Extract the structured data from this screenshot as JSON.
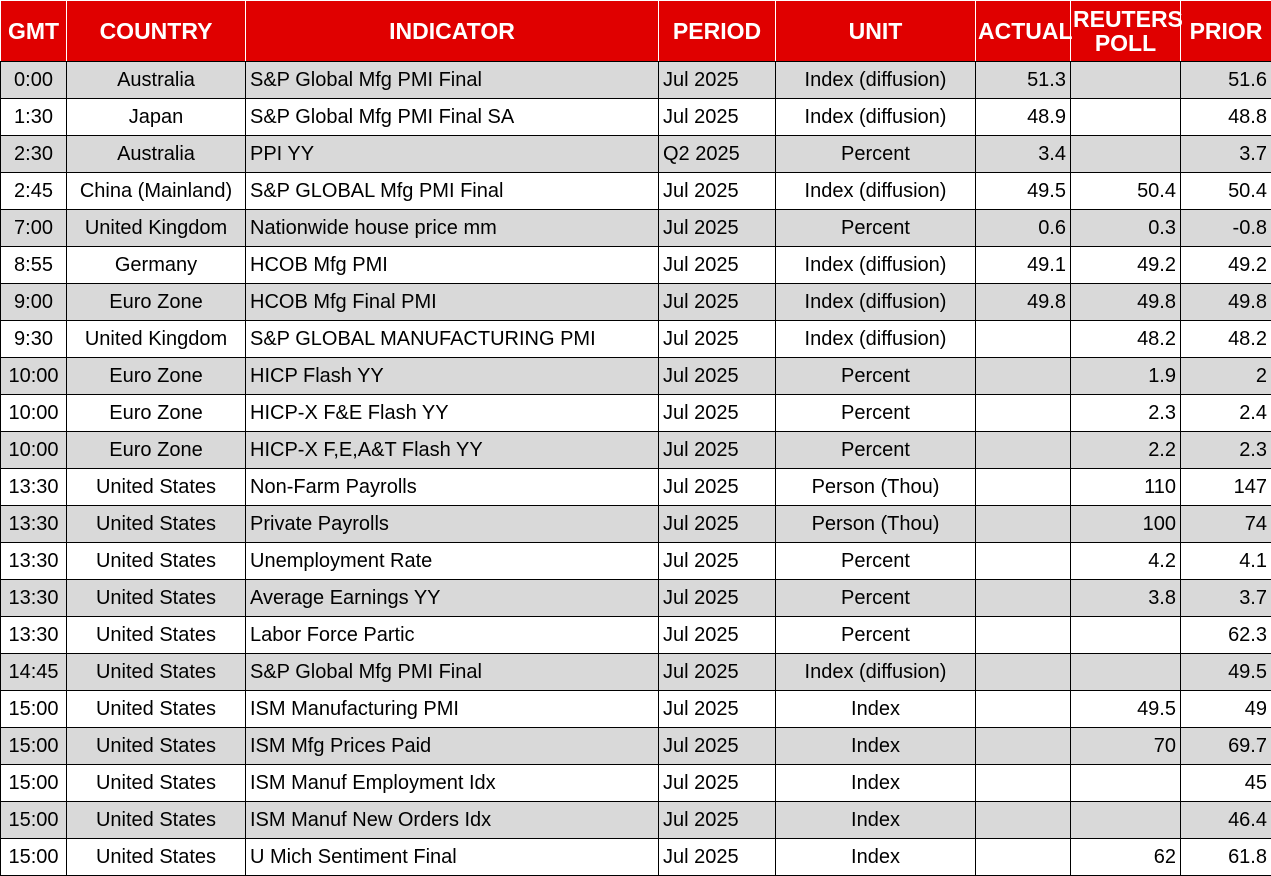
{
  "headers": {
    "gmt": "GMT",
    "country": "COUNTRY",
    "indicator": "INDICATOR",
    "period": "PERIOD",
    "unit": "UNIT",
    "actual": "ACTUAL",
    "poll_line1": "REUTERS",
    "poll_line2": "POLL",
    "prior": "PRIOR"
  },
  "rows": [
    {
      "gmt": "0:00",
      "country": "Australia",
      "indicator": "S&P Global Mfg PMI Final",
      "period": "Jul 2025",
      "unit": "Index (diffusion)",
      "actual": "51.3",
      "poll": "",
      "prior": "51.6"
    },
    {
      "gmt": "1:30",
      "country": "Japan",
      "indicator": "S&P Global Mfg PMI Final SA",
      "period": "Jul 2025",
      "unit": "Index (diffusion)",
      "actual": "48.9",
      "poll": "",
      "prior": "48.8"
    },
    {
      "gmt": "2:30",
      "country": "Australia",
      "indicator": "PPI YY",
      "period": "Q2 2025",
      "unit": "Percent",
      "actual": "3.4",
      "poll": "",
      "prior": "3.7"
    },
    {
      "gmt": "2:45",
      "country": "China (Mainland)",
      "indicator": "S&P GLOBAL Mfg PMI Final",
      "period": "Jul 2025",
      "unit": "Index (diffusion)",
      "actual": "49.5",
      "poll": "50.4",
      "prior": "50.4"
    },
    {
      "gmt": "7:00",
      "country": "United Kingdom",
      "indicator": "Nationwide house price mm",
      "period": "Jul 2025",
      "unit": "Percent",
      "actual": "0.6",
      "poll": "0.3",
      "prior": "-0.8"
    },
    {
      "gmt": "8:55",
      "country": "Germany",
      "indicator": "HCOB Mfg PMI",
      "period": "Jul 2025",
      "unit": "Index (diffusion)",
      "actual": "49.1",
      "poll": "49.2",
      "prior": "49.2"
    },
    {
      "gmt": "9:00",
      "country": "Euro Zone",
      "indicator": "HCOB Mfg Final PMI",
      "period": "Jul 2025",
      "unit": "Index (diffusion)",
      "actual": "49.8",
      "poll": "49.8",
      "prior": "49.8"
    },
    {
      "gmt": "9:30",
      "country": "United Kingdom",
      "indicator": "S&P GLOBAL MANUFACTURING PMI",
      "period": "Jul 2025",
      "unit": "Index (diffusion)",
      "actual": "",
      "poll": "48.2",
      "prior": "48.2"
    },
    {
      "gmt": "10:00",
      "country": "Euro Zone",
      "indicator": "HICP Flash YY",
      "period": "Jul 2025",
      "unit": "Percent",
      "actual": "",
      "poll": "1.9",
      "prior": "2"
    },
    {
      "gmt": "10:00",
      "country": "Euro Zone",
      "indicator": "HICP-X F&E Flash YY",
      "period": "Jul 2025",
      "unit": "Percent",
      "actual": "",
      "poll": "2.3",
      "prior": "2.4"
    },
    {
      "gmt": "10:00",
      "country": "Euro Zone",
      "indicator": "HICP-X F,E,A&T Flash YY",
      "period": "Jul 2025",
      "unit": "Percent",
      "actual": "",
      "poll": "2.2",
      "prior": "2.3"
    },
    {
      "gmt": "13:30",
      "country": "United States",
      "indicator": "Non-Farm Payrolls",
      "period": "Jul 2025",
      "unit": "Person (Thou)",
      "actual": "",
      "poll": "110",
      "prior": "147"
    },
    {
      "gmt": "13:30",
      "country": "United States",
      "indicator": "Private Payrolls",
      "period": "Jul 2025",
      "unit": "Person (Thou)",
      "actual": "",
      "poll": "100",
      "prior": "74"
    },
    {
      "gmt": "13:30",
      "country": "United States",
      "indicator": "Unemployment Rate",
      "period": "Jul 2025",
      "unit": "Percent",
      "actual": "",
      "poll": "4.2",
      "prior": "4.1"
    },
    {
      "gmt": "13:30",
      "country": "United States",
      "indicator": "Average Earnings YY",
      "period": "Jul 2025",
      "unit": "Percent",
      "actual": "",
      "poll": "3.8",
      "prior": "3.7"
    },
    {
      "gmt": "13:30",
      "country": "United States",
      "indicator": "Labor Force Partic",
      "period": "Jul 2025",
      "unit": "Percent",
      "actual": "",
      "poll": "",
      "prior": "62.3"
    },
    {
      "gmt": "14:45",
      "country": "United States",
      "indicator": "S&P Global Mfg PMI Final",
      "period": "Jul 2025",
      "unit": "Index (diffusion)",
      "actual": "",
      "poll": "",
      "prior": "49.5"
    },
    {
      "gmt": "15:00",
      "country": "United States",
      "indicator": "ISM Manufacturing PMI",
      "period": "Jul 2025",
      "unit": "Index",
      "actual": "",
      "poll": "49.5",
      "prior": "49"
    },
    {
      "gmt": "15:00",
      "country": "United States",
      "indicator": "ISM Mfg Prices Paid",
      "period": "Jul 2025",
      "unit": "Index",
      "actual": "",
      "poll": "70",
      "prior": "69.7"
    },
    {
      "gmt": "15:00",
      "country": "United States",
      "indicator": "ISM Manuf Employment Idx",
      "period": "Jul 2025",
      "unit": "Index",
      "actual": "",
      "poll": "",
      "prior": "45"
    },
    {
      "gmt": "15:00",
      "country": "United States",
      "indicator": "ISM Manuf New Orders Idx",
      "period": "Jul 2025",
      "unit": "Index",
      "actual": "",
      "poll": "",
      "prior": "46.4"
    },
    {
      "gmt": "15:00",
      "country": "United States",
      "indicator": "U Mich Sentiment Final",
      "period": "Jul 2025",
      "unit": "Index",
      "actual": "",
      "poll": "62",
      "prior": "61.8"
    }
  ],
  "colors": {
    "header_bg": "#e00000",
    "header_text": "#ffffff",
    "shaded_row": "#d9d9d9",
    "plain_row": "#ffffff"
  }
}
